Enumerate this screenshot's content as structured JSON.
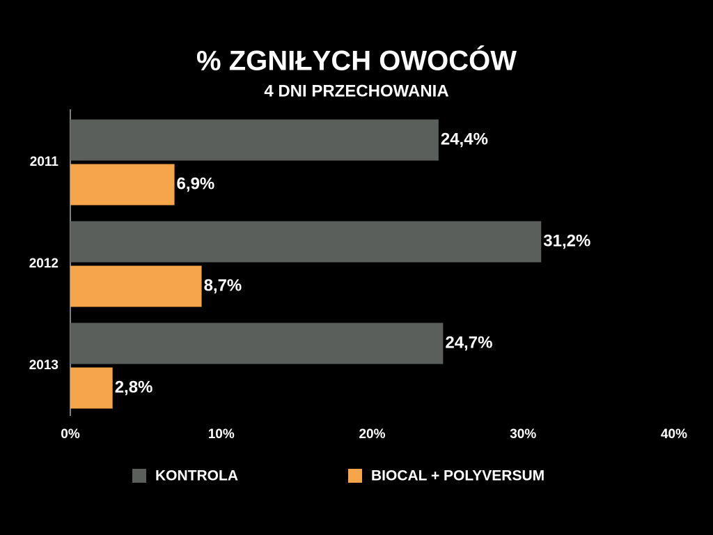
{
  "chart_data": {
    "type": "barh",
    "title": "% ZGNIŁYCH OWOCÓW",
    "subtitle": "4 DNI PRZECHOWANIA",
    "categories": [
      "2011",
      "2012",
      "2013"
    ],
    "series": [
      {
        "name": "KONTROLA",
        "color": "#5a5f5c",
        "values": [
          24.4,
          31.2,
          24.7
        ],
        "value_labels": [
          "24,4%",
          "31,2%",
          "24,7%"
        ]
      },
      {
        "name": "BIOCAL + POLYVERSUM",
        "color": "#f7a54a",
        "values": [
          6.9,
          8.7,
          2.8
        ],
        "value_labels": [
          "6,9%",
          "8,7%",
          "2,8%"
        ]
      }
    ],
    "xlim": [
      0,
      40
    ],
    "xticks": [
      {
        "value": 0,
        "label": "0%"
      },
      {
        "value": 10,
        "label": "10%"
      },
      {
        "value": 20,
        "label": "20%"
      },
      {
        "value": 30,
        "label": "30%"
      },
      {
        "value": 40,
        "label": "40%"
      }
    ],
    "grid": false,
    "legend": "bottom"
  }
}
